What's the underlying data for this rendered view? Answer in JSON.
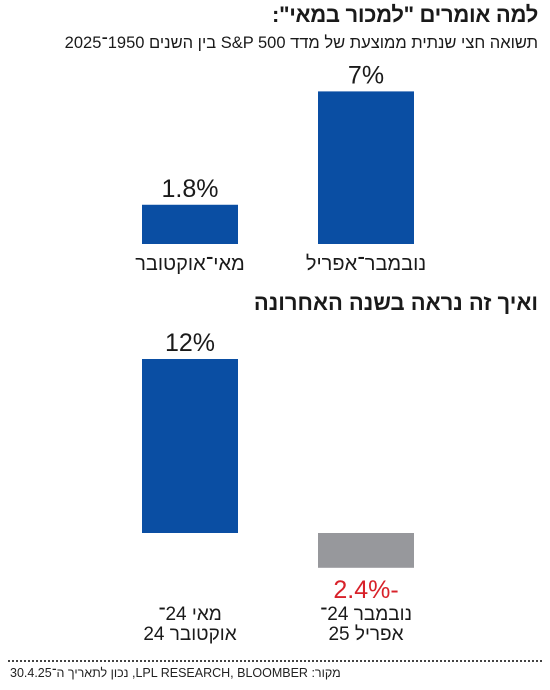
{
  "title": "למה אומרים \"למכור במאי\":",
  "subtitle": "תשואה חצי שנתית ממוצעת של מדד S&P 500 בין השנים 1950־2025",
  "section2_title": "ואיך זה נראה בשנה האחרונה",
  "source": "מקור: LPL RESEARCH, BLOOMBER, נכון לתאריך ה־30.4.25",
  "colors": {
    "positive": "#0a4ea3",
    "negative_bar": "#97989c",
    "negative_label": "#d8222a",
    "text": "#1a1a1a"
  },
  "chart_data": [
    {
      "type": "bar",
      "categories": [
        "מאי־אוקטובר",
        "נובמבר־אפריל"
      ],
      "values": [
        1.8,
        7
      ],
      "value_labels": [
        "1.8%",
        "7%"
      ],
      "ylim": [
        0,
        7.5
      ]
    },
    {
      "type": "bar",
      "categories": [
        [
          "מאי 24־",
          "אוקטובר 24"
        ],
        [
          "נובמבר 24־",
          "אפריל 25"
        ]
      ],
      "values": [
        12,
        -2.4
      ],
      "value_labels": [
        "12%",
        "-2.4%"
      ],
      "ylim": [
        -2.4,
        12.5
      ]
    }
  ]
}
